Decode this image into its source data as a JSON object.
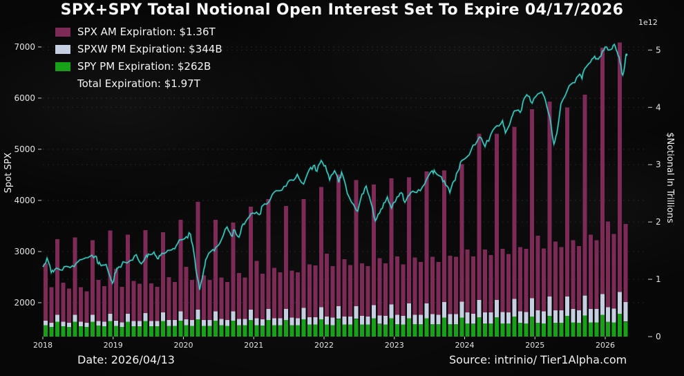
{
  "title": "SPX+SPY Total Notional Open Interest Set To Expire 04/17/2026",
  "offset_label": "1e12",
  "legend": [
    {
      "label": "SPX AM Expiration: $1.36T",
      "color": "#7e2a57"
    },
    {
      "label": "SPXW PM Expiration: $344B",
      "color": "#c6cfe2"
    },
    {
      "label": "SPY PM Expiration: $262B",
      "color": "#18a018"
    },
    {
      "label": "Total Expiration: $1.97T",
      "color": null
    }
  ],
  "footer": {
    "date": "Date: 2026/04/13",
    "source": "Source: intrinio/ Tier1Alpha.com"
  },
  "axes": {
    "left_label": "Spot SPX",
    "left_ticks": [
      2000,
      3000,
      4000,
      5000,
      6000,
      7000
    ],
    "right_label": "$Notional In Trillions",
    "right_ticks": [
      0,
      1,
      2,
      3,
      4,
      5
    ],
    "x_ticks": [
      2018,
      2019,
      2020,
      2021,
      2022,
      2023,
      2024,
      2025,
      2026
    ]
  },
  "chart_data": [
    {
      "type": "bar",
      "stacked": true,
      "start_year": 2018,
      "interval_months": 1,
      "ylabel": "$Notional In Trillions",
      "ylim": [
        0,
        5.33
      ],
      "unit": "1e12",
      "series": [
        {
          "name": "SPY PM Expiration",
          "color": "#18a018",
          "values": [
            0.2,
            0.17,
            0.26,
            0.18,
            0.17,
            0.26,
            0.18,
            0.17,
            0.26,
            0.19,
            0.18,
            0.27,
            0.19,
            0.17,
            0.26,
            0.18,
            0.18,
            0.27,
            0.18,
            0.18,
            0.27,
            0.19,
            0.19,
            0.28,
            0.2,
            0.19,
            0.3,
            0.19,
            0.19,
            0.28,
            0.2,
            0.19,
            0.28,
            0.2,
            0.2,
            0.29,
            0.2,
            0.19,
            0.29,
            0.2,
            0.2,
            0.29,
            0.2,
            0.2,
            0.3,
            0.21,
            0.21,
            0.3,
            0.21,
            0.2,
            0.31,
            0.21,
            0.21,
            0.31,
            0.21,
            0.21,
            0.32,
            0.22,
            0.21,
            0.32,
            0.22,
            0.21,
            0.32,
            0.22,
            0.22,
            0.32,
            0.22,
            0.22,
            0.33,
            0.22,
            0.22,
            0.33,
            0.23,
            0.22,
            0.34,
            0.23,
            0.23,
            0.34,
            0.23,
            0.23,
            0.35,
            0.24,
            0.23,
            0.35,
            0.24,
            0.23,
            0.36,
            0.24,
            0.24,
            0.36,
            0.25,
            0.24,
            0.37,
            0.25,
            0.25,
            0.38,
            0.26,
            0.25,
            0.4,
            0.262
          ]
        },
        {
          "name": "SPXW PM Expiration",
          "color": "#c6cfe2",
          "values": [
            0.08,
            0.07,
            0.12,
            0.08,
            0.07,
            0.12,
            0.08,
            0.07,
            0.12,
            0.08,
            0.08,
            0.13,
            0.09,
            0.08,
            0.14,
            0.09,
            0.09,
            0.14,
            0.09,
            0.09,
            0.15,
            0.1,
            0.1,
            0.16,
            0.1,
            0.1,
            0.17,
            0.1,
            0.1,
            0.16,
            0.11,
            0.1,
            0.16,
            0.11,
            0.11,
            0.18,
            0.12,
            0.11,
            0.19,
            0.12,
            0.12,
            0.19,
            0.13,
            0.12,
            0.2,
            0.13,
            0.13,
            0.21,
            0.14,
            0.13,
            0.22,
            0.14,
            0.14,
            0.22,
            0.15,
            0.14,
            0.23,
            0.15,
            0.15,
            0.24,
            0.16,
            0.15,
            0.26,
            0.16,
            0.16,
            0.26,
            0.17,
            0.16,
            0.27,
            0.17,
            0.17,
            0.28,
            0.19,
            0.18,
            0.3,
            0.19,
            0.19,
            0.3,
            0.2,
            0.19,
            0.31,
            0.2,
            0.2,
            0.32,
            0.22,
            0.21,
            0.34,
            0.22,
            0.22,
            0.34,
            0.23,
            0.22,
            0.35,
            0.23,
            0.23,
            0.36,
            0.25,
            0.24,
            0.38,
            0.344
          ]
        },
        {
          "name": "SPX AM Expiration",
          "color": "#7e2a57",
          "values": [
            1.0,
            0.62,
            1.32,
            0.68,
            0.6,
            1.35,
            0.6,
            0.55,
            1.3,
            0.72,
            0.62,
            1.45,
            0.9,
            0.62,
            1.38,
            0.7,
            0.65,
            1.45,
            0.66,
            0.6,
            1.4,
            0.75,
            0.66,
            1.6,
            0.92,
            0.7,
            1.88,
            0.78,
            0.7,
            1.6,
            0.72,
            0.66,
            1.55,
            0.8,
            0.72,
            1.8,
            1.0,
            0.8,
            1.92,
            0.88,
            0.8,
            1.8,
            0.82,
            0.8,
            1.9,
            0.92,
            0.9,
            2.1,
            1.1,
            0.9,
            2.3,
            1.0,
            0.9,
            2.2,
            0.92,
            0.88,
            2.1,
            1.0,
            0.92,
            2.2,
            1.02,
            0.9,
            2.2,
            1.0,
            0.92,
            2.3,
            1.0,
            0.92,
            2.3,
            1.02,
            1.0,
            2.4,
            1.1,
            1.0,
            2.9,
            1.1,
            1.0,
            2.9,
            1.1,
            1.02,
            3.0,
            1.12,
            1.1,
            3.3,
            1.3,
            1.1,
            3.4,
            1.2,
            1.1,
            3.3,
            1.2,
            1.12,
            3.5,
            1.3,
            1.2,
            4.3,
            1.5,
            1.3,
            4.35,
            1.36
          ]
        }
      ]
    },
    {
      "type": "line",
      "name": "Spot SPX",
      "color": "#3cd3c8",
      "ylabel": "Spot SPX",
      "ylim": [
        1337,
        7310
      ],
      "points": [
        [
          2018.0,
          2700
        ],
        [
          2018.06,
          2872
        ],
        [
          2018.12,
          2588
        ],
        [
          2018.17,
          2650
        ],
        [
          2018.25,
          2640
        ],
        [
          2018.33,
          2712
        ],
        [
          2018.42,
          2722
        ],
        [
          2018.5,
          2800
        ],
        [
          2018.58,
          2858
        ],
        [
          2018.67,
          2904
        ],
        [
          2018.75,
          2912
        ],
        [
          2018.79,
          2760
        ],
        [
          2018.83,
          2722
        ],
        [
          2018.9,
          2748
        ],
        [
          2018.96,
          2500
        ],
        [
          2018.99,
          2380
        ],
        [
          2019.04,
          2600
        ],
        [
          2019.08,
          2700
        ],
        [
          2019.17,
          2790
        ],
        [
          2019.25,
          2830
        ],
        [
          2019.33,
          2940
        ],
        [
          2019.4,
          2760
        ],
        [
          2019.46,
          2890
        ],
        [
          2019.5,
          2950
        ],
        [
          2019.58,
          2990
        ],
        [
          2019.63,
          2860
        ],
        [
          2019.67,
          2920
        ],
        [
          2019.75,
          2980
        ],
        [
          2019.83,
          3030
        ],
        [
          2019.9,
          3120
        ],
        [
          2019.96,
          3230
        ],
        [
          2020.04,
          3290
        ],
        [
          2020.1,
          3340
        ],
        [
          2020.15,
          2960
        ],
        [
          2020.19,
          2550
        ],
        [
          2020.23,
          2250
        ],
        [
          2020.29,
          2650
        ],
        [
          2020.33,
          2870
        ],
        [
          2020.42,
          3040
        ],
        [
          2020.48,
          3100
        ],
        [
          2020.54,
          3230
        ],
        [
          2020.62,
          3480
        ],
        [
          2020.68,
          3310
        ],
        [
          2020.73,
          3420
        ],
        [
          2020.79,
          3280
        ],
        [
          2020.85,
          3540
        ],
        [
          2020.9,
          3620
        ],
        [
          2020.96,
          3740
        ],
        [
          2021.04,
          3770
        ],
        [
          2021.08,
          3720
        ],
        [
          2021.13,
          3900
        ],
        [
          2021.21,
          3960
        ],
        [
          2021.29,
          4160
        ],
        [
          2021.37,
          4190
        ],
        [
          2021.46,
          4280
        ],
        [
          2021.54,
          4400
        ],
        [
          2021.62,
          4510
        ],
        [
          2021.71,
          4320
        ],
        [
          2021.79,
          4600
        ],
        [
          2021.85,
          4680
        ],
        [
          2021.9,
          4570
        ],
        [
          2021.96,
          4780
        ],
        [
          2022.02,
          4680
        ],
        [
          2022.08,
          4400
        ],
        [
          2022.15,
          4580
        ],
        [
          2022.21,
          4350
        ],
        [
          2022.25,
          4550
        ],
        [
          2022.33,
          4140
        ],
        [
          2022.42,
          3920
        ],
        [
          2022.48,
          3790
        ],
        [
          2022.54,
          4120
        ],
        [
          2022.6,
          4280
        ],
        [
          2022.67,
          3940
        ],
        [
          2022.73,
          3600
        ],
        [
          2022.79,
          3750
        ],
        [
          2022.85,
          3950
        ],
        [
          2022.9,
          4070
        ],
        [
          2022.96,
          3850
        ],
        [
          2023.04,
          4070
        ],
        [
          2023.1,
          4150
        ],
        [
          2023.15,
          3960
        ],
        [
          2023.21,
          4100
        ],
        [
          2023.29,
          4160
        ],
        [
          2023.37,
          4190
        ],
        [
          2023.46,
          4420
        ],
        [
          2023.54,
          4580
        ],
        [
          2023.58,
          4550
        ],
        [
          2023.67,
          4460
        ],
        [
          2023.73,
          4300
        ],
        [
          2023.79,
          4150
        ],
        [
          2023.85,
          4380
        ],
        [
          2023.9,
          4560
        ],
        [
          2023.96,
          4780
        ],
        [
          2024.04,
          4860
        ],
        [
          2024.12,
          5080
        ],
        [
          2024.21,
          5240
        ],
        [
          2024.29,
          5050
        ],
        [
          2024.37,
          5280
        ],
        [
          2024.46,
          5460
        ],
        [
          2024.54,
          5560
        ],
        [
          2024.58,
          5320
        ],
        [
          2024.67,
          5630
        ],
        [
          2024.71,
          5750
        ],
        [
          2024.79,
          5720
        ],
        [
          2024.85,
          6000
        ],
        [
          2024.9,
          6040
        ],
        [
          2024.96,
          5900
        ],
        [
          2025.04,
          6080
        ],
        [
          2025.1,
          6120
        ],
        [
          2025.15,
          5950
        ],
        [
          2025.21,
          5640
        ],
        [
          2025.27,
          5100
        ],
        [
          2025.31,
          5300
        ],
        [
          2025.37,
          5890
        ],
        [
          2025.46,
          6150
        ],
        [
          2025.54,
          6300
        ],
        [
          2025.62,
          6440
        ],
        [
          2025.67,
          6380
        ],
        [
          2025.71,
          6580
        ],
        [
          2025.79,
          6700
        ],
        [
          2025.85,
          6820
        ],
        [
          2025.9,
          6760
        ],
        [
          2025.96,
          6920
        ],
        [
          2026.02,
          7000
        ],
        [
          2026.08,
          6950
        ],
        [
          2026.13,
          7050
        ],
        [
          2026.17,
          6900
        ],
        [
          2026.21,
          6700
        ],
        [
          2026.25,
          6450
        ],
        [
          2026.29,
          6800
        ],
        [
          2026.31,
          6870
        ]
      ]
    }
  ]
}
